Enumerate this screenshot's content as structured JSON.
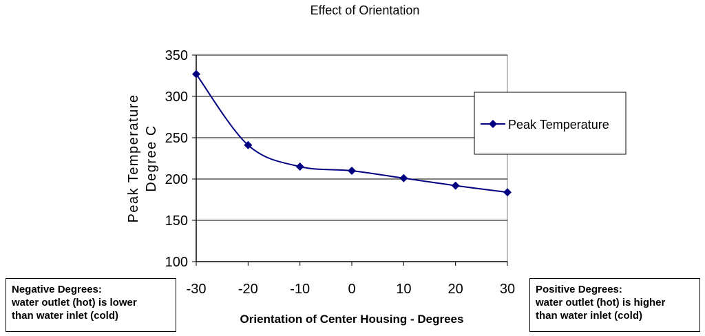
{
  "chart_data": {
    "type": "line",
    "title": "Effect of Orientation",
    "xlabel": "Orientation of Center Housing - Degrees",
    "ylabel_lines": [
      "Peak Temperature",
      "Degree C"
    ],
    "x": [
      -30,
      -20,
      -10,
      0,
      10,
      20,
      30
    ],
    "xticks": [
      "-30",
      "-20",
      "-10",
      "0",
      "10",
      "20",
      "30"
    ],
    "yticks": [
      "100",
      "150",
      "200",
      "250",
      "300",
      "350"
    ],
    "xlim": [
      -30,
      30
    ],
    "ylim": [
      100,
      350
    ],
    "grid": "horizontal",
    "legend_position": "right",
    "series": [
      {
        "name": "Peak Temperature",
        "color": "#000080",
        "values": [
          327,
          241,
          215,
          210,
          201,
          192,
          184
        ]
      }
    ]
  },
  "notes": {
    "negative": {
      "lines": [
        "Negative Degrees:",
        "water outlet (hot) is lower",
        "than water inlet (cold)"
      ]
    },
    "positive": {
      "lines": [
        "Positive Degrees:",
        "water outlet (hot) is higher",
        "than water inlet (cold)"
      ]
    }
  }
}
